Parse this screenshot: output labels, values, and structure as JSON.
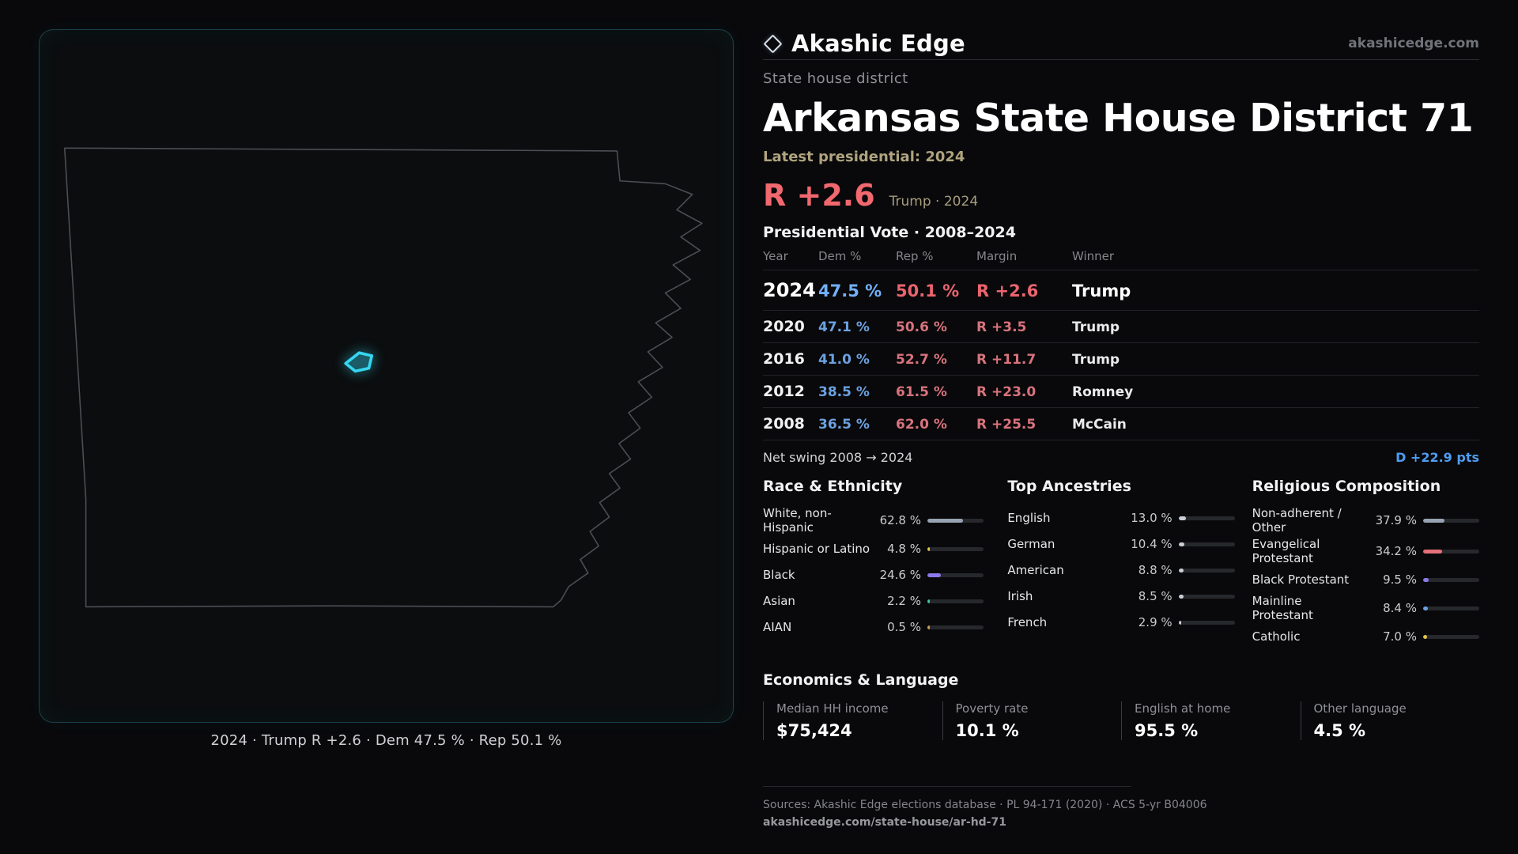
{
  "brand": {
    "name": "Akashic Edge",
    "site": "akashicedge.com"
  },
  "map": {
    "caption": "2024 · Trump R +2.6 · Dem 47.5 % · Rep 50.1 %"
  },
  "page": {
    "kicker": "State house district",
    "title": "Arkansas State House District 71",
    "latest_label": "Latest presidential: 2024",
    "headline": {
      "margin": "R +2.6",
      "detail": "Trump · 2024"
    }
  },
  "vote_table": {
    "title": "Presidential Vote · 2008–2024",
    "columns": {
      "year": "Year",
      "dem": "Dem %",
      "rep": "Rep %",
      "margin": "Margin",
      "winner": "Winner"
    },
    "rows": [
      {
        "year": "2024",
        "dem": "47.5 %",
        "rep": "50.1 %",
        "margin": "R +2.6",
        "winner": "Trump"
      },
      {
        "year": "2020",
        "dem": "47.1 %",
        "rep": "50.6 %",
        "margin": "R +3.5",
        "winner": "Trump"
      },
      {
        "year": "2016",
        "dem": "41.0 %",
        "rep": "52.7 %",
        "margin": "R +11.7",
        "winner": "Trump"
      },
      {
        "year": "2012",
        "dem": "38.5 %",
        "rep": "61.5 %",
        "margin": "R +23.0",
        "winner": "Romney"
      },
      {
        "year": "2008",
        "dem": "36.5 %",
        "rep": "62.0 %",
        "margin": "R +25.5",
        "winner": "McCain"
      }
    ],
    "net_swing": {
      "label": "Net swing 2008 → 2024",
      "value": "D +22.9 pts"
    }
  },
  "demographics": {
    "race": {
      "title": "Race & Ethnicity",
      "rows": [
        {
          "label": "White, non-Hispanic",
          "value": "62.8 %",
          "pct": 62.8,
          "color": "#97a3b2"
        },
        {
          "label": "Hispanic or Latino",
          "value": "4.8 %",
          "pct": 4.8,
          "color": "#e3c44d"
        },
        {
          "label": "Black",
          "value": "24.6 %",
          "pct": 24.6,
          "color": "#8a79e8"
        },
        {
          "label": "Asian",
          "value": "2.2 %",
          "pct": 2.2,
          "color": "#3cc9a0"
        },
        {
          "label": "AIAN",
          "value": "0.5 %",
          "pct": 0.5,
          "color": "#c9a25a"
        }
      ]
    },
    "ancestries": {
      "title": "Top Ancestries",
      "rows": [
        {
          "label": "English",
          "value": "13.0 %",
          "pct": 13.0,
          "color": "#c9ced6"
        },
        {
          "label": "German",
          "value": "10.4 %",
          "pct": 10.4,
          "color": "#c9ced6"
        },
        {
          "label": "American",
          "value": "8.8 %",
          "pct": 8.8,
          "color": "#c9ced6"
        },
        {
          "label": "Irish",
          "value": "8.5 %",
          "pct": 8.5,
          "color": "#c9ced6"
        },
        {
          "label": "French",
          "value": "2.9 %",
          "pct": 2.9,
          "color": "#c9ced6"
        }
      ]
    },
    "religion": {
      "title": "Religious Composition",
      "rows": [
        {
          "label": "Non-adherent / Other",
          "value": "37.9 %",
          "pct": 37.9,
          "color": "#97a3b2"
        },
        {
          "label": "Evangelical Protestant",
          "value": "34.2 %",
          "pct": 34.2,
          "color": "#e5707a"
        },
        {
          "label": "Black Protestant",
          "value": "9.5 %",
          "pct": 9.5,
          "color": "#8a79e8"
        },
        {
          "label": "Mainline Protestant",
          "value": "8.4 %",
          "pct": 8.4,
          "color": "#6ba1e0"
        },
        {
          "label": "Catholic",
          "value": "7.0 %",
          "pct": 7.0,
          "color": "#e3c44d"
        }
      ]
    }
  },
  "economics": {
    "title": "Economics & Language",
    "stats": [
      {
        "label": "Median HH income",
        "value": "$75,424"
      },
      {
        "label": "Poverty rate",
        "value": "10.1 %"
      },
      {
        "label": "English at home",
        "value": "95.5 %"
      },
      {
        "label": "Other language",
        "value": "4.5 %"
      }
    ]
  },
  "footer": {
    "sources": "Sources: Akashic Edge elections database · PL 94-171 (2020) · ACS 5-yr B04006",
    "permalink": "akashicedge.com/state-house/ar-hd-71"
  }
}
